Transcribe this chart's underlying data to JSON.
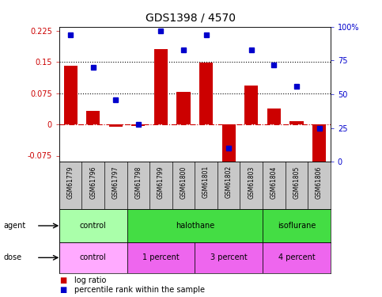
{
  "title": "GDS1398 / 4570",
  "samples": [
    "GSM61779",
    "GSM61796",
    "GSM61797",
    "GSM61798",
    "GSM61799",
    "GSM61800",
    "GSM61801",
    "GSM61802",
    "GSM61803",
    "GSM61804",
    "GSM61805",
    "GSM61806"
  ],
  "log_ratio": [
    0.141,
    0.033,
    -0.005,
    -0.003,
    0.182,
    0.078,
    0.148,
    -0.095,
    0.093,
    0.038,
    0.007,
    -0.092
  ],
  "percentile_rank": [
    94,
    70,
    46,
    28,
    97,
    83,
    94,
    10,
    83,
    72,
    56,
    25
  ],
  "ylim_left": [
    -0.09,
    0.235
  ],
  "ylim_right": [
    0,
    100
  ],
  "yticks_left": [
    -0.075,
    0,
    0.075,
    0.15,
    0.225
  ],
  "yticks_right": [
    0,
    25,
    50,
    75,
    100
  ],
  "hlines": [
    0.075,
    0.15
  ],
  "bar_color": "#CC0000",
  "dot_color": "#0000CC",
  "agent_groups": [
    {
      "label": "control",
      "start": 0,
      "end": 3,
      "color": "#AAFFAA"
    },
    {
      "label": "halothane",
      "start": 3,
      "end": 9,
      "color": "#44DD44"
    },
    {
      "label": "isoflurane",
      "start": 9,
      "end": 12,
      "color": "#44DD44"
    }
  ],
  "dose_groups": [
    {
      "label": "control",
      "start": 0,
      "end": 3,
      "color": "#FFAAFF"
    },
    {
      "label": "1 percent",
      "start": 3,
      "end": 6,
      "color": "#EE66EE"
    },
    {
      "label": "3 percent",
      "start": 6,
      "end": 9,
      "color": "#EE66EE"
    },
    {
      "label": "4 percent",
      "start": 9,
      "end": 12,
      "color": "#EE66EE"
    }
  ],
  "sample_bg": "#C8C8C8",
  "bar_width": 0.6,
  "title_fontsize": 10,
  "tick_fontsize": 7,
  "label_fontsize": 7,
  "row_fontsize": 7,
  "legend_square_size": 7,
  "legend_text_size": 7
}
